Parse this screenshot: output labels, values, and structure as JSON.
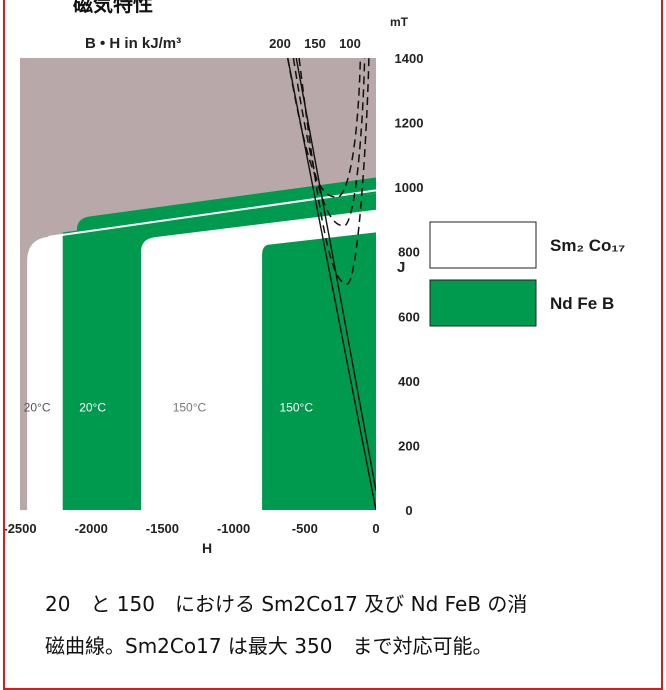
{
  "page": {
    "header_text": "磁気特性",
    "caption_line1": "20　と 150　における Sm2Co17 及び Nd FeB の消",
    "caption_line2": "磁曲線。Sm2Co17 は最大 350　まで対応可能。"
  },
  "chart_data": {
    "type": "line",
    "title": "B • H in kJ/m³",
    "xlabel": "H",
    "ylabel": "J",
    "y_unit": "mT",
    "x_ticks": [
      "-2500",
      "-2000",
      "-1500",
      "-1000",
      "-500",
      "0"
    ],
    "y_ticks": [
      "0",
      "200",
      "400",
      "600",
      "800",
      "1000",
      "1200",
      "1400"
    ],
    "xlim": [
      -2500,
      0
    ],
    "ylim": [
      0,
      1400
    ],
    "energy_product_labels": [
      "200",
      "150",
      "100"
    ],
    "legend": [
      {
        "name": "Sm₂ Co₁₇",
        "color": "#ffffff"
      },
      {
        "name": "Nd Fe B",
        "color": "#009a4e"
      }
    ],
    "colors": {
      "background": "#b8a8aa",
      "ndfeb": "#009a4e",
      "smco": "#ffffff"
    },
    "series": [
      {
        "name": "Sm₂ Co₁₇",
        "temp": "20°C",
        "upper": [
          [
            -2500,
            840
          ],
          [
            0,
            990
          ]
        ],
        "knee_H": -2300
      },
      {
        "name": "Nd Fe B",
        "temp": "20°C",
        "upper": [
          [
            -2100,
            890
          ],
          [
            -2000,
            910
          ],
          [
            0,
            1020
          ]
        ],
        "lower": [
          [
            -2100,
            860
          ],
          [
            0,
            980
          ]
        ]
      },
      {
        "name": "Sm₂ Co₁₇",
        "temp": "150°C",
        "upper": [
          [
            -1650,
            800
          ],
          [
            -1550,
            845
          ],
          [
            0,
            930
          ]
        ]
      },
      {
        "name": "Nd Fe B",
        "temp": "150°C",
        "upper": [
          [
            -800,
            810
          ],
          [
            -750,
            820
          ],
          [
            0,
            860
          ]
        ]
      }
    ],
    "temp_labels": [
      "20°C",
      "20°C",
      "150°C",
      "150°C"
    ]
  }
}
